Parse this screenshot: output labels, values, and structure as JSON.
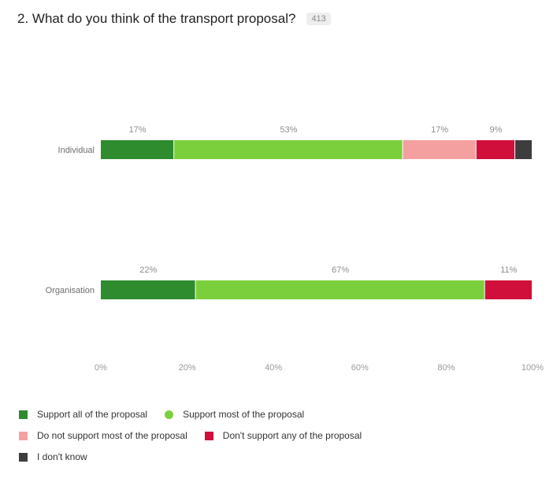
{
  "question": {
    "title": "2. What do you think of the transport proposal?",
    "count": "413"
  },
  "chart_data": {
    "type": "bar",
    "orientation": "horizontal",
    "stacked": true,
    "categories": [
      "Individual",
      "Organisation"
    ],
    "series": [
      {
        "name": "Support all of the proposal",
        "color": "#2e8b2e",
        "values": [
          17,
          22
        ]
      },
      {
        "name": "Support most of the proposal",
        "color": "#7ccf3c",
        "values": [
          53,
          67
        ]
      },
      {
        "name": "Do not support most of the proposal",
        "color": "#f5a0a0",
        "values": [
          17,
          0
        ]
      },
      {
        "name": "Don't support any of the proposal",
        "color": "#d0103a",
        "values": [
          9,
          11
        ]
      },
      {
        "name": "I don't know",
        "color": "#3d3d3d",
        "values": [
          4,
          0
        ]
      }
    ],
    "data_labels": [
      [
        "17%",
        "53%",
        "17%",
        "9%",
        ""
      ],
      [
        "22%",
        "67%",
        "",
        "11%",
        ""
      ]
    ],
    "xlim": [
      0,
      100
    ],
    "xticks": [
      "0%",
      "20%",
      "40%",
      "60%",
      "80%",
      "100%"
    ],
    "grid": false,
    "legend_position": "bottom"
  },
  "legend": {
    "rows": [
      [
        {
          "label": "Support all of the proposal",
          "color": "#2e8b2e",
          "shape": "square"
        },
        {
          "label": "Support most of the proposal",
          "color": "#7ccf3c",
          "shape": "circle"
        }
      ],
      [
        {
          "label": "Do not support most of the proposal",
          "color": "#f5a0a0",
          "shape": "square"
        },
        {
          "label": "Don't support any of the proposal",
          "color": "#d0103a",
          "shape": "square"
        }
      ],
      [
        {
          "label": "I don't know",
          "color": "#3d3d3d",
          "shape": "square"
        }
      ]
    ]
  }
}
